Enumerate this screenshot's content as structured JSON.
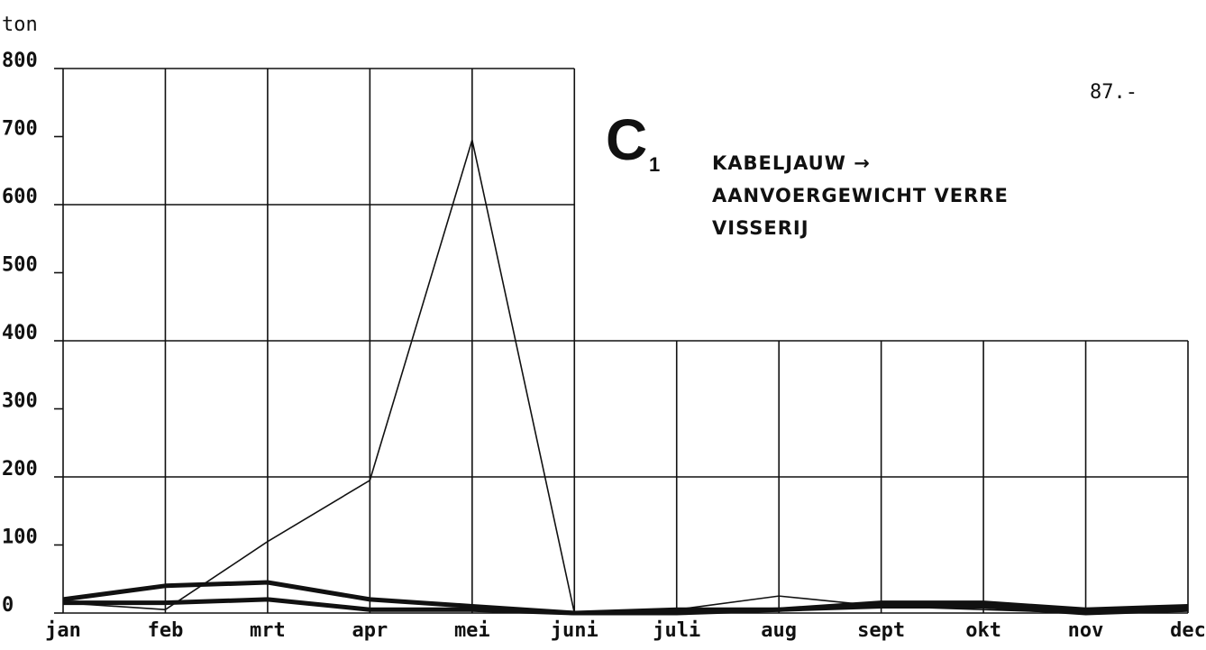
{
  "chart_data": {
    "type": "line",
    "ylabel": "ton",
    "page_number": "87.-",
    "annotation": {
      "label": "C",
      "subscript": "1"
    },
    "title_lines": [
      "KABELJAUW →",
      "AANVOERGEWICHT VERRE",
      "VISSERIJ"
    ],
    "categories": [
      "jan",
      "feb",
      "mrt",
      "apr",
      "mei",
      "juni",
      "juli",
      "aug",
      "sept",
      "okt",
      "nov",
      "dec"
    ],
    "series": [
      {
        "color": "#111111",
        "width": 1.6,
        "values": [
          15,
          5,
          105,
          195,
          695,
          0,
          5,
          25,
          10,
          5,
          0,
          5
        ]
      },
      {
        "color": "#111111",
        "width": 5,
        "values": [
          20,
          40,
          45,
          20,
          10,
          0,
          5,
          5,
          15,
          15,
          5,
          10
        ]
      },
      {
        "color": "#111111",
        "width": 5,
        "values": [
          15,
          15,
          20,
          5,
          5,
          0,
          0,
          5,
          10,
          10,
          0,
          5
        ]
      }
    ],
    "ylim": [
      0,
      800
    ],
    "yticks": [
      0,
      100,
      200,
      300,
      400,
      500,
      600,
      700,
      800
    ],
    "grid": true
  }
}
